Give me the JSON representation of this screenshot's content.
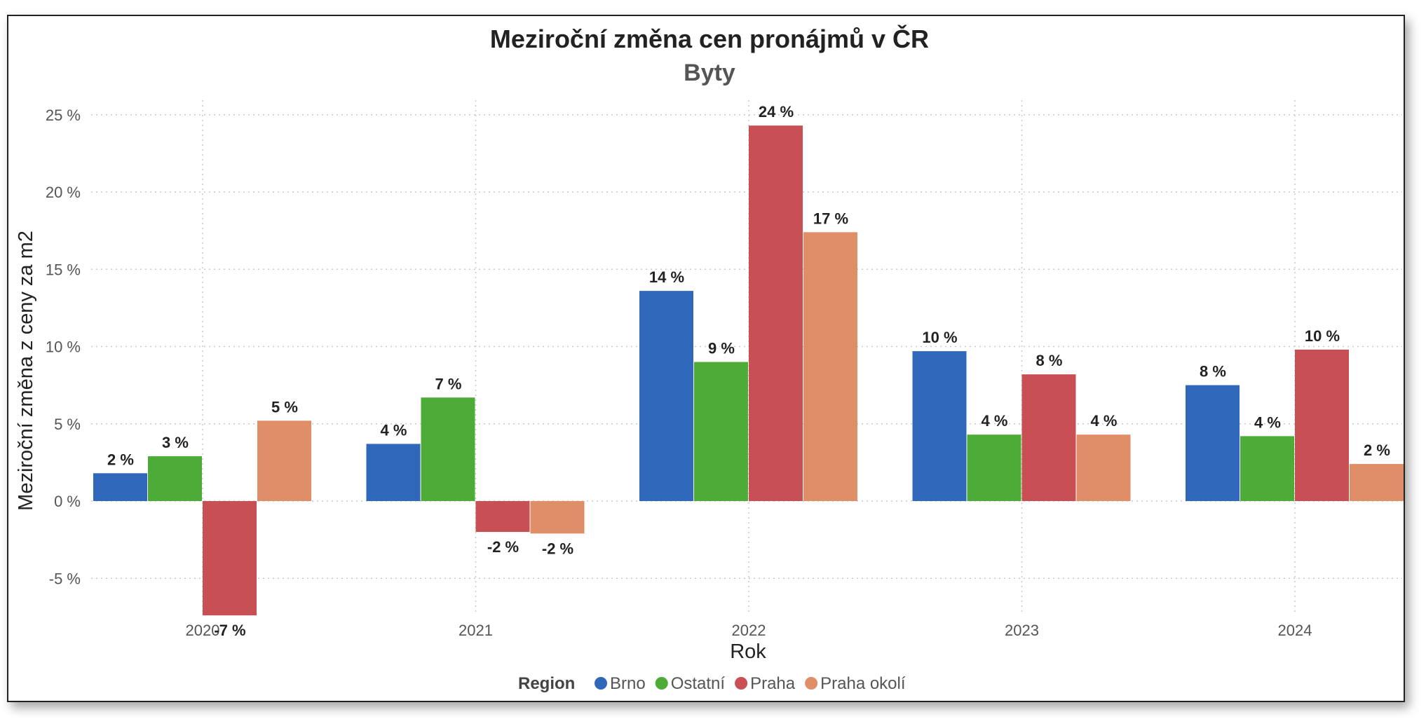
{
  "chart_data": {
    "type": "bar",
    "title": "Meziroční změna cen pronájmů v ČR",
    "subtitle": "Byty",
    "xlabel": "Rok",
    "ylabel": "Meziroční změna z ceny za m2",
    "categories": [
      "2020",
      "2021",
      "2022",
      "2023",
      "2024"
    ],
    "ylim": [
      -7.5,
      25.5
    ],
    "yticks": [
      -5,
      0,
      5,
      10,
      15,
      20,
      25
    ],
    "ytick_labels": [
      "-5 %",
      "0 %",
      "5 %",
      "10 %",
      "15 %",
      "20 %",
      "25 %"
    ],
    "grid": true,
    "legend": {
      "title": "Region",
      "placement": "bottom"
    },
    "series": [
      {
        "name": "Brno",
        "color": "#2f68bb",
        "values": [
          1.8,
          3.7,
          13.6,
          9.7,
          7.5
        ],
        "labels": [
          "2 %",
          "4 %",
          "14 %",
          "10 %",
          "8 %"
        ]
      },
      {
        "name": "Ostatní",
        "color": "#4dab37",
        "values": [
          2.9,
          6.7,
          9.0,
          4.3,
          4.2
        ],
        "labels": [
          "3 %",
          "7 %",
          "9 %",
          "4 %",
          "4 %"
        ]
      },
      {
        "name": "Praha",
        "color": "#c84f53",
        "values": [
          -7.4,
          -2.0,
          24.3,
          8.2,
          9.8
        ],
        "labels": [
          "-7 %",
          "-2 %",
          "24 %",
          "8 %",
          "10 %"
        ]
      },
      {
        "name": "Praha okolí",
        "color": "#df8e68",
        "values": [
          5.2,
          -2.1,
          17.4,
          4.3,
          2.4
        ],
        "labels": [
          "5 %",
          "-2 %",
          "17 %",
          "4 %",
          "2 %"
        ]
      }
    ]
  }
}
